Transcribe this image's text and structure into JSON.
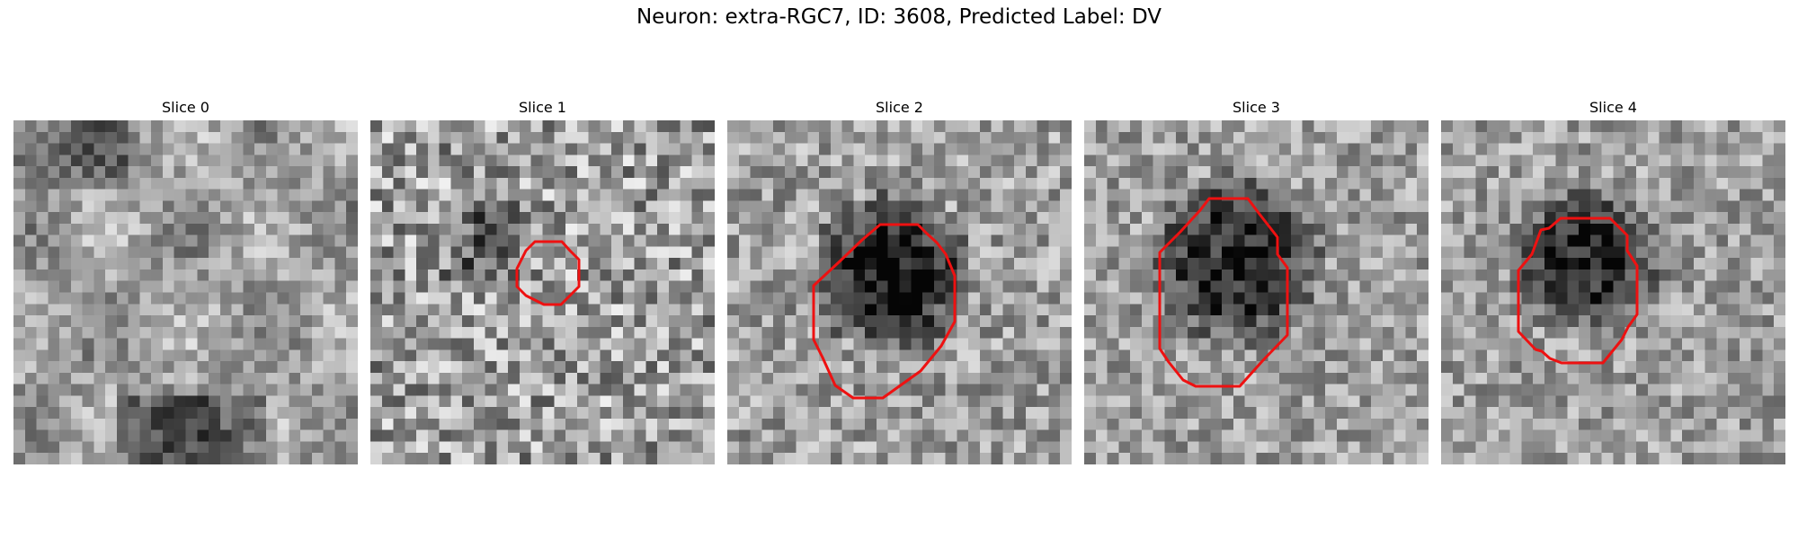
{
  "figure": {
    "title": "Neuron: extra-RGC7, ID: 3608, Predicted Label: DV"
  },
  "panels": [
    {
      "title": "Slice 0",
      "has_contour": false
    },
    {
      "title": "Slice 1",
      "has_contour": true
    },
    {
      "title": "Slice 2",
      "has_contour": true
    },
    {
      "title": "Slice 3",
      "has_contour": true
    },
    {
      "title": "Slice 4",
      "has_contour": true
    }
  ],
  "colors": {
    "contour": "#ee1111",
    "colormap": "grayscale"
  }
}
